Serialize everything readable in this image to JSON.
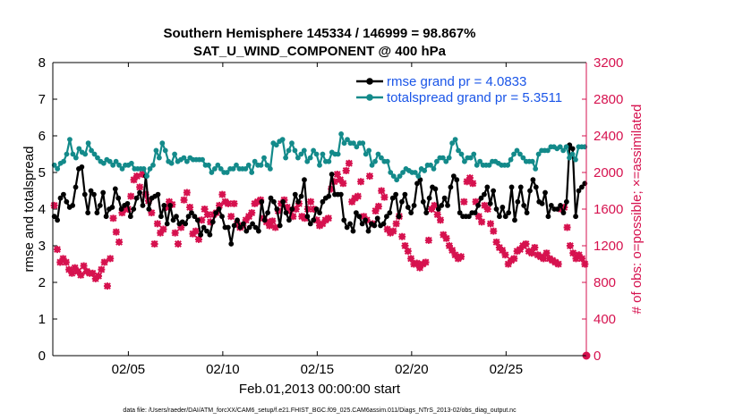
{
  "chart_data": {
    "type": "line",
    "title_line1": "Southern Hemisphere 145334 / 146999 = 98.867%",
    "title_line2": "SAT_U_WIND_COMPONENT @ 400 hPa",
    "xlabel": "Feb.01,2013 00:00:00 start",
    "ylabel_left": "rmse and totalspread",
    "ylabel_right": "# of obs: o=possible; ×=assimilated",
    "footnote": "data file: /Users/raeder/DAI/ATM_forcXX/CAM6_setup/f.e21.FHIST_BGC.f09_025.CAM6assim.011/Diags_NTrS_2013-02/obs_diag_output.nc",
    "xlim": [
      1,
      29.25
    ],
    "x_ticks": [
      {
        "x": 5,
        "label": "02/05"
      },
      {
        "x": 10,
        "label": "02/10"
      },
      {
        "x": 15,
        "label": "02/15"
      },
      {
        "x": 20,
        "label": "02/20"
      },
      {
        "x": 25,
        "label": "02/25"
      }
    ],
    "ylim_left": [
      0,
      8
    ],
    "y_ticks_left": [
      "0",
      "1",
      "2",
      "3",
      "4",
      "5",
      "6",
      "7",
      "8"
    ],
    "ylim_right": [
      0,
      3200
    ],
    "y_ticks_right": [
      "0",
      "400",
      "800",
      "1200",
      "1600",
      "2000",
      "2400",
      "2800",
      "3200"
    ],
    "colors": {
      "rmse": "#000000",
      "totalspread": "#138a8a",
      "obs": "#d6124f",
      "legend_text": "#1a55e8"
    },
    "series": [
      {
        "name": "rmse grand pr = 4.0833",
        "axis": "left",
        "values": [
          3.8,
          3.7,
          4.3,
          4.4,
          4.2,
          4.05,
          4.1,
          4.6,
          5.1,
          5.15,
          4.4,
          3.9,
          4.5,
          4.4,
          3.9,
          4.1,
          4.45,
          3.8,
          4.0,
          4.05,
          4.55,
          4.3,
          4.0,
          4.1,
          4.15,
          3.8,
          4.0,
          4.3,
          4.45,
          4.1,
          4.9,
          4.0,
          4.3,
          4.35,
          4.4,
          3.8,
          4.1,
          3.6,
          4.1,
          3.7,
          3.8,
          3.6,
          3.65,
          3.6,
          3.8,
          3.9,
          3.8,
          3.7,
          3.3,
          3.5,
          3.4,
          3.3,
          3.65,
          3.9,
          4.0,
          3.8,
          3.5,
          3.5,
          3.05,
          3.55,
          3.7,
          3.5,
          3.6,
          3.4,
          3.5,
          3.6,
          3.5,
          3.4,
          4.2,
          3.7,
          3.9,
          4.3,
          4.2,
          4.0,
          3.55,
          4.2,
          3.9,
          3.7,
          4.0,
          4.4,
          4.2,
          4.35,
          4.8,
          3.8,
          3.6,
          3.7,
          4.0,
          3.9,
          4.2,
          4.3,
          4.35,
          4.95,
          4.4,
          4.4,
          4.4,
          3.7,
          3.5,
          3.6,
          3.4,
          3.9,
          3.8,
          3.6,
          3.7,
          3.4,
          3.6,
          3.55,
          3.75,
          3.55,
          3.6,
          3.8,
          3.9,
          4.3,
          4.4,
          3.8,
          4.2,
          4.4,
          4.05,
          3.9,
          4.1,
          4.7,
          4.8,
          4.2,
          3.9,
          4.3,
          4.6,
          4.55,
          4.0,
          4.1,
          4.3,
          4.1,
          4.6,
          4.9,
          4.8,
          3.9,
          3.8,
          3.8,
          3.8,
          3.9,
          3.9,
          4.1,
          4.3,
          4.4,
          4.6,
          4.15,
          4.5,
          4.0,
          3.8,
          4.05,
          3.8,
          3.9,
          4.6,
          3.7,
          4.2,
          4.6,
          4.1,
          3.9,
          4.5,
          4.8,
          4.6,
          4.2,
          4.15,
          4.45,
          3.8,
          4.1,
          4.0,
          4.0,
          4.1,
          3.9,
          4.2,
          5.75,
          5.65,
          3.8,
          4.5,
          4.6,
          4.7
        ]
      },
      {
        "name": "totalspread grand pr = 5.3511",
        "axis": "left",
        "values": [
          5.2,
          5.1,
          5.25,
          5.3,
          5.5,
          5.9,
          5.5,
          5.4,
          5.65,
          5.55,
          5.5,
          5.8,
          5.6,
          5.5,
          5.4,
          5.3,
          5.25,
          5.35,
          5.3,
          5.2,
          5.3,
          5.2,
          5.1,
          5.2,
          5.2,
          5.25,
          5.1,
          5.1,
          5.1,
          5.1,
          4.9,
          5.1,
          5.2,
          5.6,
          5.4,
          5.8,
          5.6,
          5.3,
          5.25,
          5.5,
          5.3,
          5.35,
          5.4,
          5.3,
          5.4,
          5.35,
          5.35,
          5.35,
          5.35,
          5.2,
          5.2,
          5.0,
          5.1,
          5.2,
          5.1,
          5.0,
          5.0,
          5.1,
          5.1,
          5.2,
          5.1,
          5.1,
          5.1,
          5.2,
          5.0,
          5.3,
          5.2,
          5.2,
          5.4,
          5.2,
          5.1,
          5.8,
          5.75,
          5.85,
          5.9,
          5.4,
          5.6,
          5.8,
          5.6,
          5.4,
          5.5,
          5.6,
          5.3,
          5.4,
          5.6,
          5.5,
          5.2,
          5.5,
          5.3,
          5.3,
          5.55,
          5.5,
          5.5,
          6.05,
          5.8,
          5.9,
          5.8,
          5.8,
          5.7,
          5.8,
          5.8,
          5.5,
          5.6,
          5.2,
          5.3,
          5.5,
          5.4,
          5.3,
          5.3,
          5.0,
          4.9,
          4.8,
          4.9,
          5.0,
          5.1,
          5.05,
          5.0,
          5.0,
          4.9,
          5.1,
          5.05,
          5.2,
          5.2,
          5.1,
          5.3,
          5.4,
          5.4,
          5.3,
          5.4,
          5.8,
          5.9,
          5.6,
          5.5,
          5.3,
          5.4,
          5.4,
          5.5,
          5.2,
          5.3,
          5.2,
          5.2,
          5.2,
          5.3,
          5.3,
          5.25,
          5.2,
          5.2,
          5.2,
          5.35,
          5.5,
          5.6,
          5.5,
          5.4,
          5.3,
          5.3,
          5.3,
          5.1,
          5.5,
          5.6,
          5.6,
          5.6,
          5.7,
          5.7,
          5.65,
          5.7,
          5.6,
          5.7,
          5.4,
          5.5,
          5.35,
          5.7,
          5.7,
          5.7
        ]
      }
    ],
    "obs_series": {
      "name": "# of obs",
      "axis": "right",
      "note": "o=possible; x=assimilated (nearly overlapping)",
      "values": [
        1640,
        1160,
        1020,
        1060,
        1020,
        940,
        900,
        960,
        920,
        880,
        980,
        920,
        900,
        900,
        840,
        870,
        940,
        1020,
        760,
        1060,
        1500,
        1350,
        1240,
        1560,
        1600,
        1600,
        1740,
        1920,
        1960,
        1840,
        1980,
        1760,
        1690,
        1560,
        1220,
        1440,
        1340,
        1380,
        1620,
        1680,
        1650,
        1340,
        1220,
        1400,
        1700,
        1780,
        1620,
        1330,
        1360,
        1270,
        1480,
        1600,
        1540,
        1460,
        1540,
        1560,
        1640,
        1760,
        1680,
        1660,
        1520,
        1660,
        1440,
        1400,
        1420,
        1480,
        1520,
        1560,
        1660,
        1680,
        1700,
        1500,
        1460,
        1420,
        1470,
        1400,
        1580,
        1660,
        1700,
        1620,
        1580,
        1520,
        1600,
        1660,
        1520,
        1500,
        1600,
        1680,
        1600,
        1480,
        1420,
        1440,
        1480,
        1500,
        1820,
        1900,
        1980,
        1920,
        1880,
        2020,
        2100,
        1680,
        1720,
        1740,
        1900,
        1520,
        1480,
        1960,
        1440,
        1580,
        1630,
        1800,
        1730,
        1380,
        1340,
        1360,
        1440,
        1520,
        1300,
        1200,
        1140,
        1060,
        1000,
        1010,
        960,
        1000,
        1020,
        1260,
        1600,
        1640,
        1540,
        1480,
        1320,
        1280,
        1200,
        1150,
        1100,
        1060,
        1080,
        1680,
        1900,
        1940,
        1880,
        1680,
        1520,
        1460,
        1640,
        1600,
        1440,
        1360,
        1240,
        1180,
        1150,
        1100,
        1000,
        1040,
        1060,
        1140,
        1160,
        1200,
        1220,
        1140,
        1120,
        1180,
        1100,
        1080,
        1060,
        1120,
        1060,
        1040,
        1020,
        1000,
        1600,
        1620,
        1400,
        1200,
        1120,
        1060,
        1100,
        1060,
        1000
      ]
    },
    "legend_position": "top-right"
  }
}
